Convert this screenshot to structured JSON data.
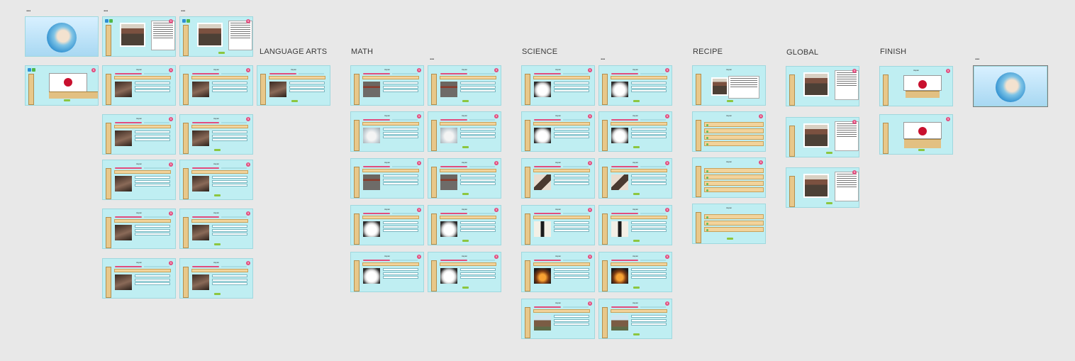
{
  "sections": {
    "language_arts": "LANGUAGE ARTS",
    "math": "MATH",
    "science": "SCIENCE",
    "recipe": "RECIPE",
    "global": "GLOBAL",
    "finish": "FINISH"
  },
  "more_label": "...",
  "slide_title": "Japan",
  "badge_value": "5",
  "colors": {
    "canvas": "#e8e8e8",
    "slide_bg": "#bfeef2",
    "accent_pink": "#e24d7e",
    "panel_tan": "#f2d39b",
    "button_green": "#8cc63f",
    "flag_red": "#c8102e"
  },
  "icons": [
    "globe-icon",
    "flag-icon",
    "more-icon",
    "badge-icon"
  ]
}
